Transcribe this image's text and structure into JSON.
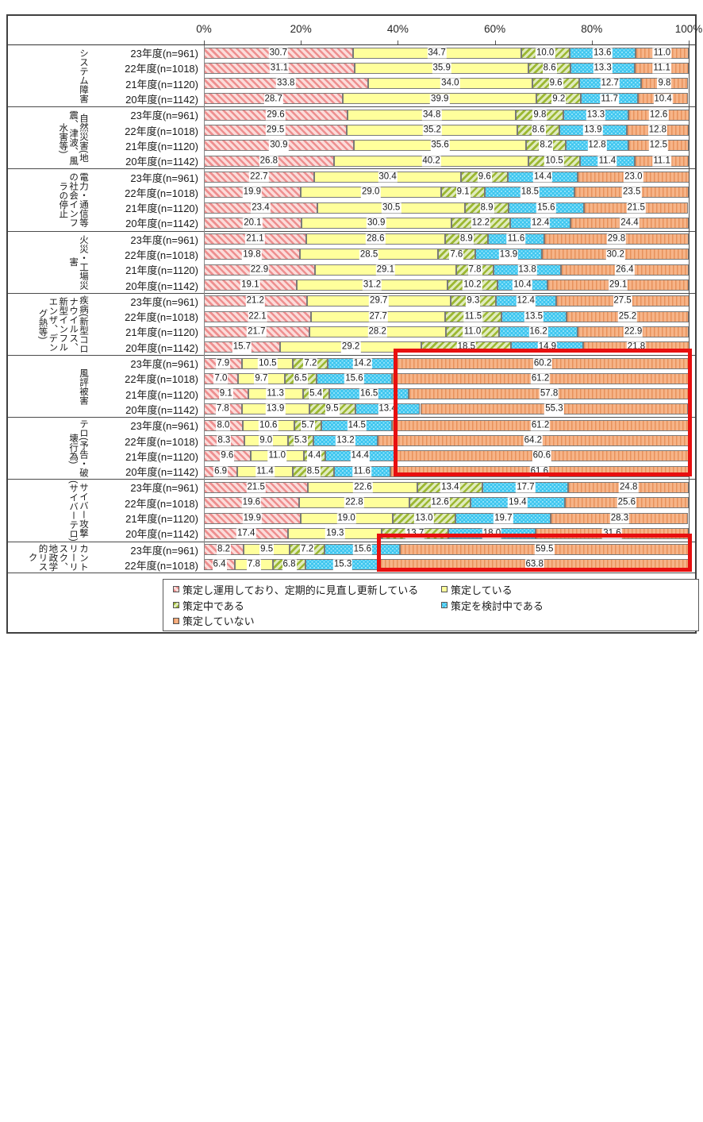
{
  "chart_data": {
    "type": "bar",
    "orientation": "horizontal",
    "stacked": true,
    "title": "",
    "x_axis": {
      "ticks": [
        "0%",
        "20%",
        "40%",
        "60%",
        "80%",
        "100%"
      ],
      "min": 0,
      "max": 100,
      "unit": "%"
    },
    "legend_position": "bottom",
    "series": [
      {
        "name": "策定し運用しており、定期的に見直し更新している",
        "pattern": "diagonal-stripes-down",
        "stripe_color": "#ee8f8f",
        "bg_color": "#fbdcda"
      },
      {
        "name": "策定している",
        "pattern": "solid",
        "fill_color": "#ffff9c"
      },
      {
        "name": "策定中である",
        "pattern": "diagonal-stripes-up",
        "stripe_color": "#9cb832",
        "bg_color": "#e0ebbd"
      },
      {
        "name": "策定を検討中である",
        "pattern": "dots",
        "fill_color": "#3fc6ef",
        "dot_color": "#8fe2f9"
      },
      {
        "name": "策定していない",
        "pattern": "vertical-lines",
        "stripe_color": "#e8925c",
        "bg_color": "#f6b488"
      }
    ],
    "groups": [
      {
        "category": "システム障害",
        "rows": [
          {
            "label": "23年度(n=961)",
            "values": [
              30.7,
              34.7,
              10.0,
              13.6,
              11.0
            ]
          },
          {
            "label": "22年度(n=1018)",
            "values": [
              31.1,
              35.9,
              8.6,
              13.3,
              11.1
            ]
          },
          {
            "label": "21年度(n=1120)",
            "values": [
              33.8,
              34.0,
              9.6,
              12.7,
              9.8
            ]
          },
          {
            "label": "20年度(n=1142)",
            "values": [
              28.7,
              39.9,
              9.2,
              11.7,
              10.4
            ]
          }
        ]
      },
      {
        "category": "自然災害(地震、津波、風水害等)",
        "rows": [
          {
            "label": "23年度(n=961)",
            "values": [
              29.6,
              34.8,
              9.8,
              13.3,
              12.6
            ]
          },
          {
            "label": "22年度(n=1018)",
            "values": [
              29.5,
              35.2,
              8.6,
              13.9,
              12.8
            ]
          },
          {
            "label": "21年度(n=1120)",
            "values": [
              30.9,
              35.6,
              8.2,
              12.8,
              12.5
            ]
          },
          {
            "label": "20年度(n=1142)",
            "values": [
              26.8,
              40.2,
              10.5,
              11.4,
              11.1
            ]
          }
        ]
      },
      {
        "category": "電力・通信等の社会インフラの停止",
        "rows": [
          {
            "label": "23年度(n=961)",
            "values": [
              22.7,
              30.4,
              9.6,
              14.4,
              23.0
            ]
          },
          {
            "label": "22年度(n=1018)",
            "values": [
              19.9,
              29.0,
              9.1,
              18.5,
              23.5
            ]
          },
          {
            "label": "21年度(n=1120)",
            "values": [
              23.4,
              30.5,
              8.9,
              15.6,
              21.5
            ]
          },
          {
            "label": "20年度(n=1142)",
            "values": [
              20.1,
              30.9,
              12.2,
              12.4,
              24.4
            ]
          }
        ]
      },
      {
        "category": "火災・工場災害",
        "rows": [
          {
            "label": "23年度(n=961)",
            "values": [
              21.1,
              28.6,
              8.9,
              11.6,
              29.8
            ]
          },
          {
            "label": "22年度(n=1018)",
            "values": [
              19.8,
              28.5,
              7.6,
              13.9,
              30.2
            ]
          },
          {
            "label": "21年度(n=1120)",
            "values": [
              22.9,
              29.1,
              7.8,
              13.8,
              26.4
            ]
          },
          {
            "label": "20年度(n=1142)",
            "values": [
              19.1,
              31.2,
              10.2,
              10.4,
              29.1
            ]
          }
        ]
      },
      {
        "category": "疾病(新型コロナウイルス、新型インフルエンザ、デング熱等)",
        "rows": [
          {
            "label": "23年度(n=961)",
            "values": [
              21.2,
              29.7,
              9.3,
              12.4,
              27.5
            ]
          },
          {
            "label": "22年度(n=1018)",
            "values": [
              22.1,
              27.7,
              11.5,
              13.5,
              25.2
            ]
          },
          {
            "label": "21年度(n=1120)",
            "values": [
              21.7,
              28.2,
              11.0,
              16.2,
              22.9
            ]
          },
          {
            "label": "20年度(n=1142)",
            "values": [
              15.7,
              29.2,
              18.5,
              14.9,
              21.8
            ]
          }
        ]
      },
      {
        "category": "風評被害",
        "rows": [
          {
            "label": "23年度(n=961)",
            "values": [
              7.9,
              10.5,
              7.2,
              14.2,
              60.2
            ]
          },
          {
            "label": "22年度(n=1018)",
            "values": [
              7.0,
              9.7,
              6.5,
              15.6,
              61.2
            ]
          },
          {
            "label": "21年度(n=1120)",
            "values": [
              9.1,
              11.3,
              5.4,
              16.5,
              57.8
            ]
          },
          {
            "label": "20年度(n=1142)",
            "values": [
              7.8,
              13.9,
              9.5,
              13.4,
              55.3
            ]
          }
        ]
      },
      {
        "category": "テロ(予告・破壊行為)",
        "rows": [
          {
            "label": "23年度(n=961)",
            "values": [
              8.0,
              10.6,
              5.7,
              14.5,
              61.2
            ]
          },
          {
            "label": "22年度(n=1018)",
            "values": [
              8.3,
              9.0,
              5.3,
              13.2,
              64.2
            ]
          },
          {
            "label": "21年度(n=1120)",
            "values": [
              9.6,
              11.0,
              4.4,
              14.4,
              60.6
            ]
          },
          {
            "label": "20年度(n=1142)",
            "values": [
              6.9,
              11.4,
              8.5,
              11.6,
              61.6
            ]
          }
        ]
      },
      {
        "category": "サイバー攻撃(サイバーテロ)",
        "rows": [
          {
            "label": "23年度(n=961)",
            "values": [
              21.5,
              22.6,
              13.4,
              17.7,
              24.8
            ]
          },
          {
            "label": "22年度(n=1018)",
            "values": [
              19.6,
              22.8,
              12.6,
              19.4,
              25.6
            ]
          },
          {
            "label": "21年度(n=1120)",
            "values": [
              19.9,
              19.0,
              13.0,
              19.7,
              28.3
            ]
          },
          {
            "label": "20年度(n=1142)",
            "values": [
              17.4,
              19.3,
              13.7,
              18.0,
              31.6
            ]
          }
        ]
      },
      {
        "category": "カントリーリスク、地政学的リスク",
        "rows": [
          {
            "label": "23年度(n=961)",
            "values": [
              8.2,
              9.5,
              7.2,
              15.6,
              59.5
            ]
          },
          {
            "label": "22年度(n=1018)",
            "values": [
              6.4,
              7.8,
              6.8,
              15.3,
              63.8
            ]
          }
        ]
      }
    ],
    "highlights": [
      {
        "description": "赤枠強調: 風評被害・テロ(予告・破壊行為)の「策定していない」セグメント",
        "color": "#e80f0f"
      },
      {
        "description": "赤枠強調: カントリーリスク、地政学的リスクの「策定していない」セグメント",
        "color": "#e80f0f"
      }
    ]
  }
}
